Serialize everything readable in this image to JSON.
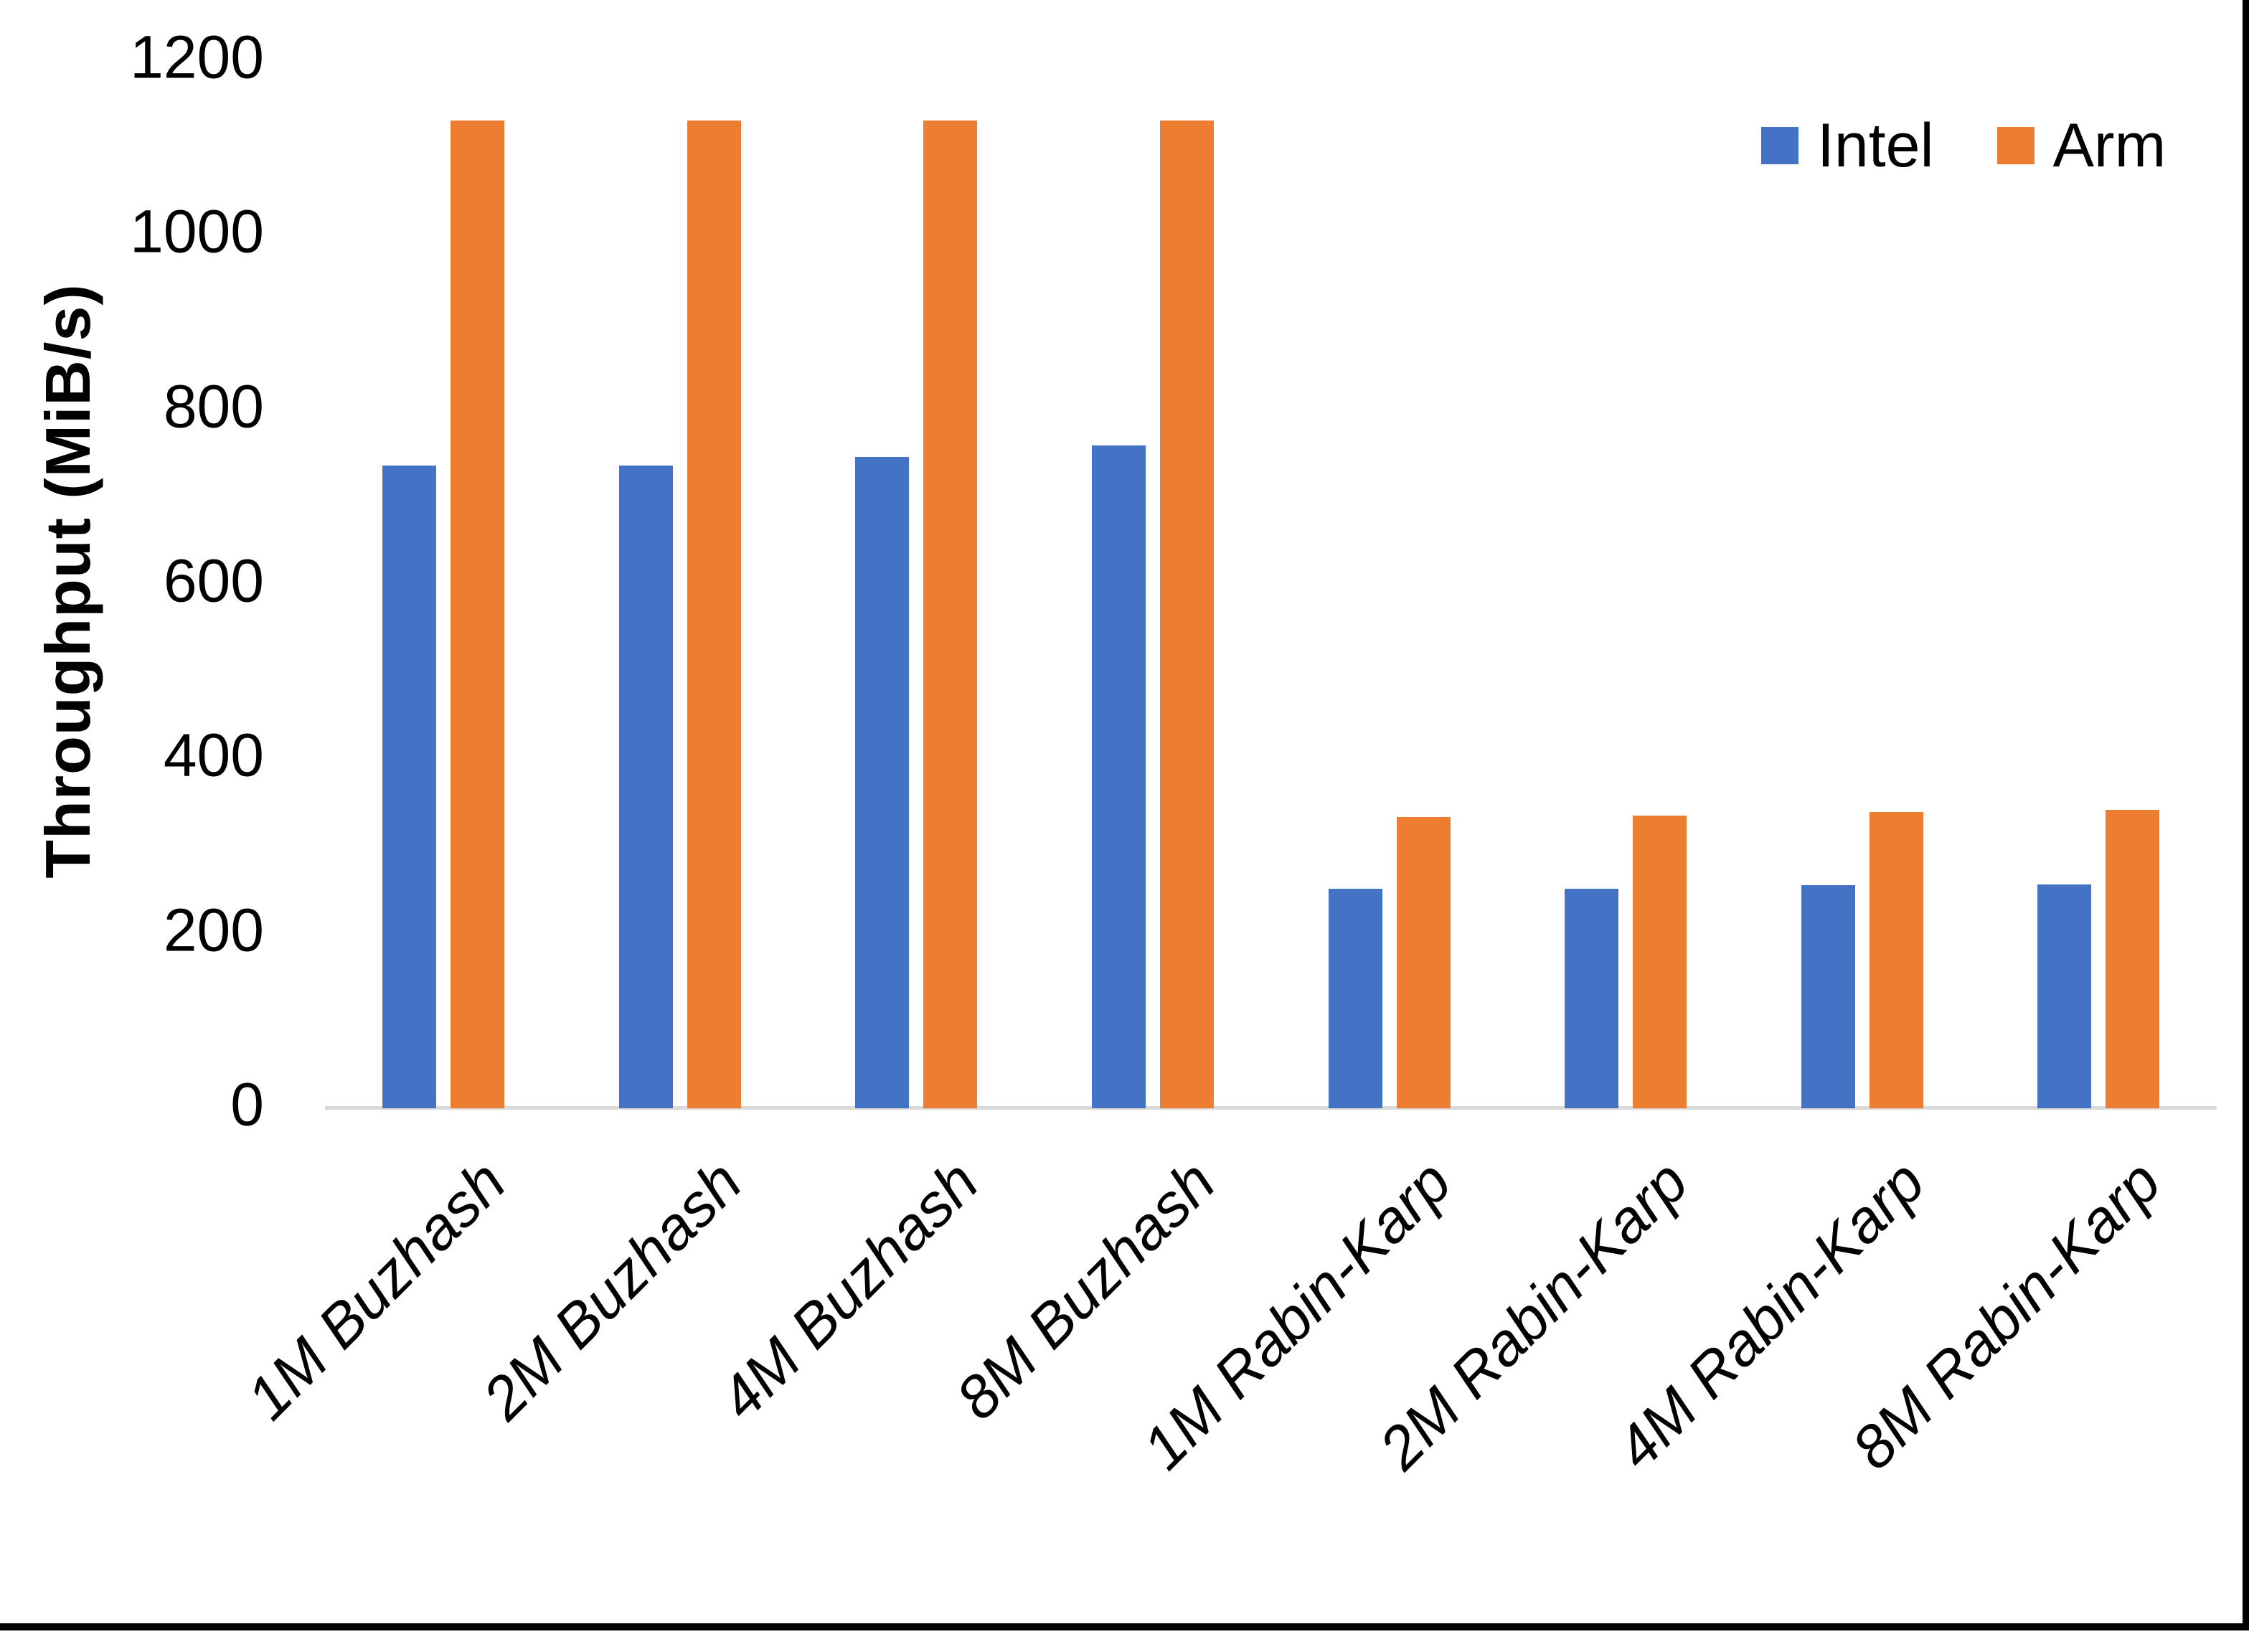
{
  "chart_data": {
    "type": "bar",
    "title": "",
    "ylabel": "Throughput (MiB/s)",
    "xlabel": "",
    "ylim": [
      0,
      1200
    ],
    "yticks": [
      0,
      200,
      400,
      600,
      800,
      1000,
      1200
    ],
    "grid": false,
    "legend_position": "top-right",
    "axis_line_color": "#d9d9d9",
    "categories": [
      "1M Buzhash",
      "2M Buzhash",
      "4M Buzhash",
      "8M Buzhash",
      "1M Rabin-Karp",
      "2M Rabin-Karp",
      "4M Rabin-Karp",
      "8M Rabin-Karp"
    ],
    "series": [
      {
        "name": "Intel",
        "color": "#4472C4",
        "values": [
          735,
          735,
          745,
          758,
          250,
          250,
          254,
          255
        ]
      },
      {
        "name": "Arm",
        "color": "#ED7D31",
        "values": [
          1130,
          1130,
          1130,
          1130,
          332,
          334,
          338,
          340
        ]
      }
    ]
  },
  "frame": {
    "border_color": "#000000"
  }
}
